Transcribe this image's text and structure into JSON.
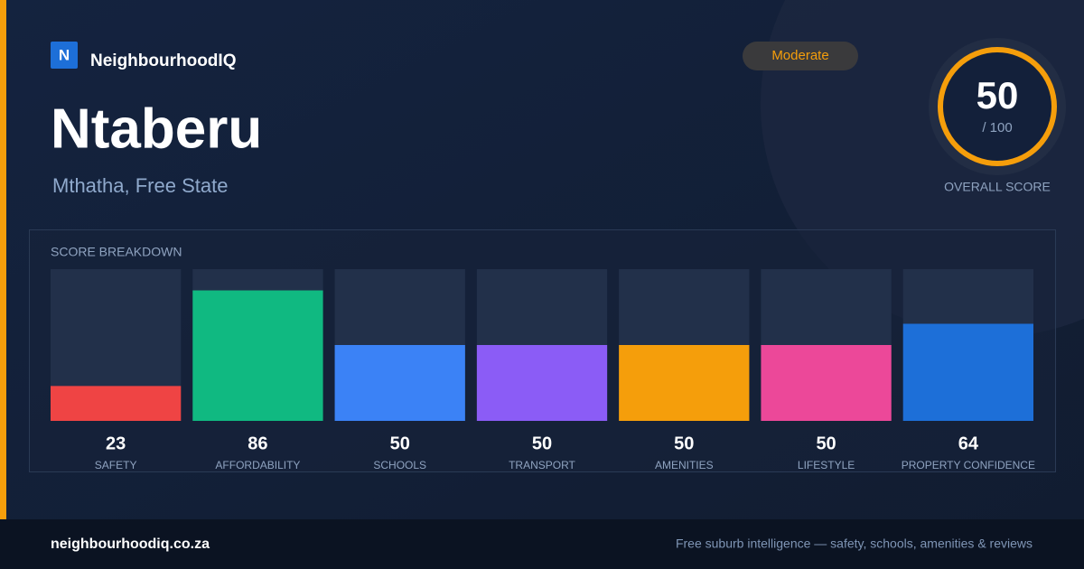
{
  "header": {
    "logo_letter": "N",
    "brand": "NeighbourhoodIQ",
    "badge": "Moderate"
  },
  "location": {
    "name": "Ntaberu",
    "subtitle": "Mthatha, Free State"
  },
  "score": {
    "value": 50,
    "denominator": "/ 100",
    "caption": "OVERALL SCORE"
  },
  "chart_data": {
    "type": "bar",
    "title": "SCORE BREAKDOWN",
    "categories": [
      "SAFETY",
      "AFFORDABILITY",
      "SCHOOLS",
      "TRANSPORT",
      "AMENITIES",
      "LIFESTYLE",
      "PROPERTY CONFIDENCE"
    ],
    "values": [
      23,
      86,
      50,
      50,
      50,
      50,
      64
    ],
    "colors": [
      "#ef4444",
      "#10b981",
      "#3b82f6",
      "#8b5cf6",
      "#f59e0b",
      "#ec4899",
      "#1d6fd8"
    ],
    "ylim": [
      0,
      100
    ]
  },
  "footer": {
    "url": "neighbourhoodiq.co.za",
    "tagline": "Free suburb intelligence — safety, schools, amenities & reviews"
  }
}
